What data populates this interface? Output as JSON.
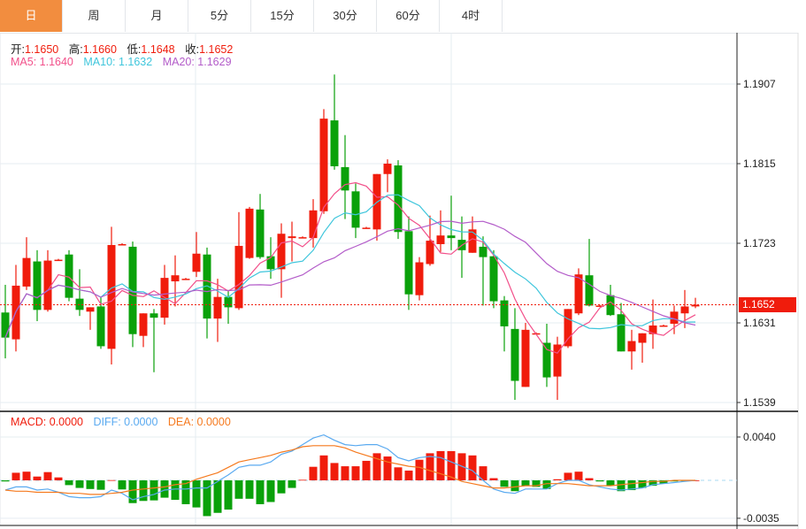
{
  "tabs": [
    {
      "label": "日",
      "active": true
    },
    {
      "label": "周"
    },
    {
      "label": "月"
    },
    {
      "label": "5分"
    },
    {
      "label": "15分"
    },
    {
      "label": "30分"
    },
    {
      "label": "60分"
    },
    {
      "label": "4时"
    }
  ],
  "ohlc_legend": {
    "open_label": "开:",
    "open": "1.1650",
    "high_label": "高:",
    "high": "1.1660",
    "low_label": "低:",
    "low": "1.1648",
    "close_label": "收:",
    "close": "1.1652"
  },
  "ma_legend": {
    "ma5": "MA5: 1.1640",
    "ma10": "MA10: 1.1632",
    "ma20": "MA20: 1.1629"
  },
  "macd_legend": {
    "macd": "MACD: 0.0000",
    "diff": "DIFF: 0.0000",
    "dea": "DEA: 0.0000"
  },
  "current_price": "1.1652",
  "colors": {
    "up": "#f01c0c",
    "down": "#0aa10a",
    "ma5": "#f2508a",
    "ma10": "#3fc6dc",
    "ma20": "#b35cc9",
    "diff": "#5aaaf0",
    "dea": "#f57a1f",
    "tab_active": "#f28d3f"
  },
  "chart_data": [
    {
      "type": "candlestick",
      "y_ticks": [
        "1.1907",
        "1.1815",
        "1.1723",
        "1.1631",
        "1.1539"
      ],
      "ylim": [
        1.1539,
        1.1907
      ],
      "candles_ohlc": [
        [
          1.1643,
          1.1614,
          1.1675,
          1.159
        ],
        [
          1.1612,
          1.1674,
          1.1698,
          1.1598
        ],
        [
          1.1673,
          1.1706,
          1.173,
          1.1669
        ],
        [
          1.1702,
          1.1646,
          1.1715,
          1.1633
        ],
        [
          1.1646,
          1.1703,
          1.1715,
          1.1644
        ],
        [
          1.1704,
          1.1704,
          1.1705,
          1.1703
        ],
        [
          1.171,
          1.166,
          1.1715,
          1.1656
        ],
        [
          1.1659,
          1.1646,
          1.1693,
          1.1639
        ],
        [
          1.1644,
          1.1649,
          1.1649,
          1.1623
        ],
        [
          1.165,
          1.1604,
          1.1661,
          1.1601
        ],
        [
          1.1601,
          1.1721,
          1.1742,
          1.1583
        ],
        [
          1.1722,
          1.1722,
          1.1723,
          1.1721
        ],
        [
          1.1719,
          1.1618,
          1.1725,
          1.1603
        ],
        [
          1.1616,
          1.1642,
          1.1642,
          1.1603
        ],
        [
          1.1642,
          1.1637,
          1.1647,
          1.1574
        ],
        [
          1.1637,
          1.1683,
          1.1698,
          1.1629
        ],
        [
          1.1679,
          1.1686,
          1.1709,
          1.165
        ],
        [
          1.1682,
          1.1682,
          1.1683,
          1.1681
        ],
        [
          1.169,
          1.1711,
          1.1736,
          1.1684
        ],
        [
          1.171,
          1.1636,
          1.1718,
          1.1613
        ],
        [
          1.1636,
          1.1661,
          1.1682,
          1.1609
        ],
        [
          1.1661,
          1.1649,
          1.1669,
          1.163
        ],
        [
          1.1648,
          1.172,
          1.1759,
          1.1646
        ],
        [
          1.1706,
          1.1763,
          1.1765,
          1.1705
        ],
        [
          1.1762,
          1.1707,
          1.178,
          1.1705
        ],
        [
          1.1708,
          1.1693,
          1.173,
          1.1682
        ],
        [
          1.1693,
          1.1734,
          1.1746,
          1.166
        ],
        [
          1.1729,
          1.1731,
          1.1748,
          1.1702
        ],
        [
          1.173,
          1.173,
          1.1731,
          1.1729
        ],
        [
          1.1729,
          1.1761,
          1.1774,
          1.1718
        ],
        [
          1.176,
          1.1867,
          1.1878,
          1.1757
        ],
        [
          1.1865,
          1.1812,
          1.1918,
          1.1808
        ],
        [
          1.1811,
          1.1784,
          1.1848,
          1.1751
        ],
        [
          1.1783,
          1.1741,
          1.1792,
          1.1729
        ],
        [
          1.1741,
          1.1741,
          1.1742,
          1.174
        ],
        [
          1.1739,
          1.1803,
          1.1803,
          1.1726
        ],
        [
          1.1803,
          1.1815,
          1.182,
          1.1782
        ],
        [
          1.1813,
          1.1736,
          1.1819,
          1.1728
        ],
        [
          1.1737,
          1.1664,
          1.1754,
          1.1646
        ],
        [
          1.1663,
          1.1701,
          1.1707,
          1.1657
        ],
        [
          1.1699,
          1.1726,
          1.1755,
          1.1697
        ],
        [
          1.1722,
          1.1732,
          1.1761,
          1.1713
        ],
        [
          1.1732,
          1.1729,
          1.1778,
          1.1715
        ],
        [
          1.1727,
          1.1715,
          1.1754,
          1.1683
        ],
        [
          1.1712,
          1.1739,
          1.1754,
          1.1712
        ],
        [
          1.1719,
          1.1707,
          1.1731,
          1.1651
        ],
        [
          1.1708,
          1.1656,
          1.1715,
          1.1648
        ],
        [
          1.1657,
          1.1627,
          1.1662,
          1.1598
        ],
        [
          1.1624,
          1.1564,
          1.1648,
          1.1542
        ],
        [
          1.1557,
          1.1623,
          1.1631,
          1.1557
        ],
        [
          1.1619,
          1.1619,
          1.162,
          1.1618
        ],
        [
          1.1608,
          1.1568,
          1.163,
          1.1557
        ],
        [
          1.1569,
          1.1606,
          1.1615,
          1.1542
        ],
        [
          1.1604,
          1.1647,
          1.1647,
          1.1602
        ],
        [
          1.1642,
          1.1687,
          1.1694,
          1.164
        ],
        [
          1.1686,
          1.1651,
          1.1728,
          1.165
        ],
        [
          1.1651,
          1.1651,
          1.1652,
          1.165
        ],
        [
          1.1663,
          1.164,
          1.1675,
          1.1639
        ],
        [
          1.1641,
          1.1598,
          1.1654,
          1.1598
        ],
        [
          1.1598,
          1.161,
          1.1623,
          1.1577
        ],
        [
          1.1608,
          1.1619,
          1.1619,
          1.1585
        ],
        [
          1.1618,
          1.1628,
          1.1658,
          1.1601
        ],
        [
          1.1628,
          1.1628,
          1.1629,
          1.1627
        ],
        [
          1.163,
          1.1644,
          1.1651,
          1.1618
        ],
        [
          1.1642,
          1.165,
          1.1669,
          1.1625
        ],
        [
          1.165,
          1.1652,
          1.166,
          1.1648
        ]
      ],
      "ma_periods": [
        5,
        10,
        20
      ]
    },
    {
      "type": "bar",
      "y_ticks": [
        "0.0040",
        "-0.0035"
      ],
      "ylim": [
        -0.0035,
        0.004
      ],
      "macd_hist": [
        -0.0001,
        0.0007,
        0.0008,
        0.00035,
        0.00076,
        0.00027,
        -0.00044,
        -0.0007,
        -0.0008,
        -0.00087,
        2e-05,
        -0.00084,
        -0.0021,
        -0.0019,
        -0.00185,
        -0.0016,
        -0.0018,
        -0.0022,
        -0.0025,
        -0.0033,
        -0.003,
        -0.0027,
        -0.0017,
        -0.0017,
        -0.0022,
        -0.002,
        -0.0012,
        -0.0007,
        5e-05,
        0.00125,
        0.0023,
        0.0016,
        0.0013,
        0.0013,
        0.0018,
        0.0025,
        0.0022,
        0.0012,
        0.0009,
        0.0019,
        0.0025,
        0.0027,
        0.0027,
        0.0025,
        0.0023,
        0.0013,
        0.0002,
        -0.0006,
        -0.001,
        -0.0005,
        -0.0006,
        -0.0008,
        0.0001,
        0.0007,
        0.0008,
        0.0002,
        -0.0001,
        -0.0005,
        -0.001,
        -0.0009,
        -0.0007,
        -0.0005,
        -0.0003,
        -0.0001,
        -5e-05,
        0
      ],
      "diff": [
        -0.0009,
        -0.0006,
        -0.0006,
        -0.0009,
        -0.0008,
        -0.0011,
        -0.0015,
        -0.0016,
        -0.0016,
        -0.0015,
        -0.0009,
        -0.0012,
        -0.0018,
        -0.0015,
        -0.0013,
        -0.0009,
        -0.0008,
        -0.0008,
        -0.0007,
        -0.0007,
        -0.0001,
        0.0005,
        0.0012,
        0.0014,
        0.0014,
        0.0017,
        0.0024,
        0.0027,
        0.0033,
        0.0039,
        0.0042,
        0.0037,
        0.0033,
        0.0032,
        0.0033,
        0.0033,
        0.0029,
        0.0021,
        0.0018,
        0.0021,
        0.0022,
        0.0021,
        0.0017,
        0.0013,
        0.0009,
        0,
        -0.0008,
        -0.0011,
        -0.0012,
        -0.0008,
        -0.0008,
        -0.0008,
        -0.0003,
        0,
        0,
        -0.0004,
        -0.0006,
        -0.0008,
        -0.0009,
        -0.0008,
        -0.0007,
        -0.0004,
        -0.0003,
        -0.0002,
        -0.0001,
        0
      ],
      "dea": [
        -0.0009,
        -0.001,
        -0.001,
        -0.0011,
        -0.0011,
        -0.0011,
        -0.0012,
        -0.0012,
        -0.0013,
        -0.0013,
        -0.0012,
        -0.0011,
        -0.0009,
        -0.0008,
        -0.0007,
        -0.0006,
        -0.0004,
        -0.0003,
        0.0001,
        0.0004,
        0.0007,
        0.0012,
        0.0017,
        0.0019,
        0.0021,
        0.0023,
        0.0026,
        0.0028,
        0.0031,
        0.0032,
        0.0032,
        0.0032,
        0.003,
        0.0026,
        0.0023,
        0.002,
        0.0017,
        0.0015,
        0.0013,
        0.0012,
        0.0009,
        0.0006,
        0.0003,
        -0.0001,
        -0.0003,
        -0.0005,
        -0.0007,
        -0.0007,
        -0.0006,
        -0.0005,
        -0.0005,
        -0.0003,
        -0.0003,
        -0.0003,
        -0.0004,
        -0.0005,
        -0.0005,
        -0.0005,
        -0.0004,
        -0.0003,
        -0.0002,
        -0.0001,
        -0.0001,
        0,
        0,
        0
      ]
    }
  ]
}
